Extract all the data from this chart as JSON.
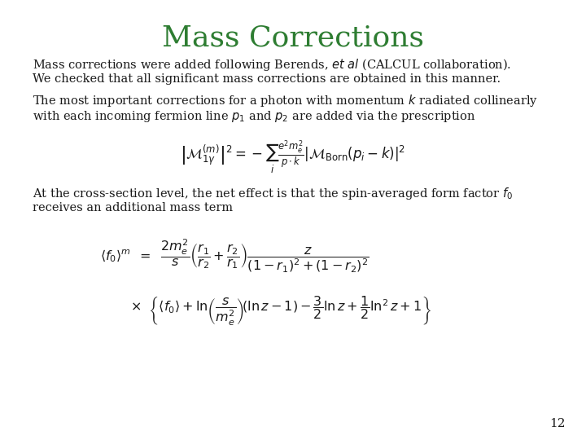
{
  "title": "Mass Corrections",
  "title_color": "#2E7D32",
  "title_fontsize": 26,
  "background_color": "#ffffff",
  "text_color": "#1a1a1a",
  "slide_number": "12",
  "paragraph1_line1": "Mass corrections were added following Berends, $et\\ al$ (CALCUL collaboration).",
  "paragraph1_line2": "We checked that all significant mass corrections are obtained in this manner.",
  "paragraph2_line1": "The most important corrections for a photon with momentum $k$ radiated collinearly",
  "paragraph2_line2": "with each incoming fermion line $p_1$ and $p_2$ are added via the prescription",
  "paragraph3_line1": "At the cross-section level, the net effect is that the spin-averaged form factor $f_0$",
  "paragraph3_line2": "receives an additional mass term",
  "fs_body": 10.5,
  "fs_math": 12.0,
  "fs_math2": 11.5
}
